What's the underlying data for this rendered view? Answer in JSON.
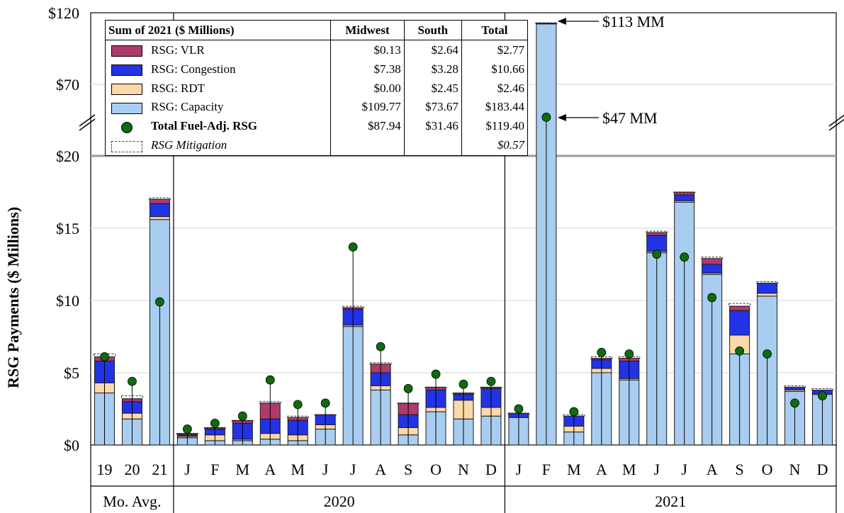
{
  "chart_data": {
    "type": "bar",
    "ylabel": "RSG Payments ($ Millions)",
    "y_ticks_lower": [
      "$0",
      "$5",
      "$10",
      "$15",
      "$20"
    ],
    "y_ticks_upper": [
      "$70",
      "$120"
    ],
    "categories": [
      "19",
      "20",
      "21",
      "J",
      "F",
      "M",
      "A",
      "M",
      "J",
      "J",
      "A",
      "S",
      "O",
      "N",
      "D",
      "J",
      "F",
      "M",
      "A",
      "M",
      "J",
      "J",
      "A",
      "S",
      "O",
      "N",
      "D"
    ],
    "groups": [
      {
        "label": "Mo. Avg.",
        "span": [
          0,
          2
        ]
      },
      {
        "label": "2020",
        "span": [
          3,
          14
        ]
      },
      {
        "label": "2021",
        "span": [
          15,
          26
        ]
      }
    ],
    "series": [
      {
        "name": "RSG: Capacity",
        "color": "#a9cdf0",
        "values": [
          3.6,
          1.8,
          15.6,
          0.5,
          0.3,
          0.3,
          0.4,
          0.3,
          1.1,
          8.2,
          3.8,
          0.7,
          2.3,
          1.8,
          2.0,
          1.9,
          112.2,
          0.9,
          5.0,
          4.5,
          13.3,
          16.8,
          11.8,
          6.3,
          10.3,
          3.7,
          3.5
        ]
      },
      {
        "name": "RSG: RDT",
        "color": "#fbd9a8",
        "values": [
          0.7,
          0.4,
          0.2,
          0.1,
          0.4,
          0.1,
          0.4,
          0.4,
          0.3,
          0.1,
          0.3,
          0.5,
          0.3,
          1.3,
          0.6,
          0.0,
          0.0,
          0.4,
          0.3,
          0.1,
          0.1,
          0.1,
          0.1,
          1.3,
          0.2,
          0.1,
          0.0
        ]
      },
      {
        "name": "RSG: Congestion",
        "color": "#2233e6",
        "values": [
          1.5,
          0.8,
          0.9,
          0.1,
          0.4,
          1.1,
          1.0,
          1.0,
          0.7,
          1.1,
          0.9,
          0.9,
          1.2,
          0.4,
          1.3,
          0.3,
          0.5,
          0.7,
          0.6,
          1.2,
          1.1,
          0.4,
          0.6,
          1.7,
          0.7,
          0.2,
          0.3
        ]
      },
      {
        "name": "RSG: VLR",
        "color": "#b03a6e",
        "values": [
          0.3,
          0.2,
          0.3,
          0.1,
          0.1,
          0.2,
          1.1,
          0.2,
          0.0,
          0.1,
          0.6,
          0.8,
          0.2,
          0.1,
          0.1,
          0.0,
          0.1,
          0.0,
          0.1,
          0.2,
          0.2,
          0.2,
          0.4,
          0.3,
          0.0,
          0.0,
          0.0
        ]
      }
    ],
    "mitigation_tops": [
      6.3,
      3.4,
      17.1,
      0.8,
      1.2,
      1.7,
      3.0,
      2.0,
      2.1,
      9.6,
      5.7,
      2.9,
      4.0,
      3.6,
      4.0,
      2.2,
      113.0,
      2.1,
      6.1,
      6.1,
      14.8,
      17.5,
      13.0,
      9.8,
      11.3,
      4.1,
      3.9
    ],
    "fuel_adj_rsg": [
      6.1,
      4.4,
      9.9,
      1.1,
      1.5,
      2.0,
      4.5,
      2.8,
      2.9,
      13.7,
      6.8,
      3.9,
      4.9,
      4.2,
      4.4,
      2.5,
      47.0,
      2.3,
      6.4,
      6.3,
      13.2,
      13.0,
      10.2,
      6.5,
      6.3,
      2.9,
      3.4
    ],
    "annotations": [
      "$113 MM",
      "$47 MM"
    ],
    "table": {
      "header": [
        "Sum of  2021 ($ Millions)",
        "Midwest",
        "South",
        "Total"
      ],
      "rows": [
        {
          "label": "RSG: VLR",
          "midwest": "$0.13",
          "south": "$2.64",
          "total": "$2.77"
        },
        {
          "label": "RSG: Congestion",
          "midwest": "$7.38",
          "south": "$3.28",
          "total": "$10.66"
        },
        {
          "label": "RSG: RDT",
          "midwest": "$0.00",
          "south": "$2.45",
          "total": "$2.46"
        },
        {
          "label": "RSG: Capacity",
          "midwest": "$109.77",
          "south": "$73.67",
          "total": "$183.44"
        },
        {
          "label": "Total Fuel-Adj. RSG",
          "midwest": "$87.94",
          "south": "$31.46",
          "total": "$119.40"
        },
        {
          "label": "RSG Mitigation",
          "midwest": "",
          "south": "",
          "total": "$0.57"
        }
      ]
    }
  }
}
